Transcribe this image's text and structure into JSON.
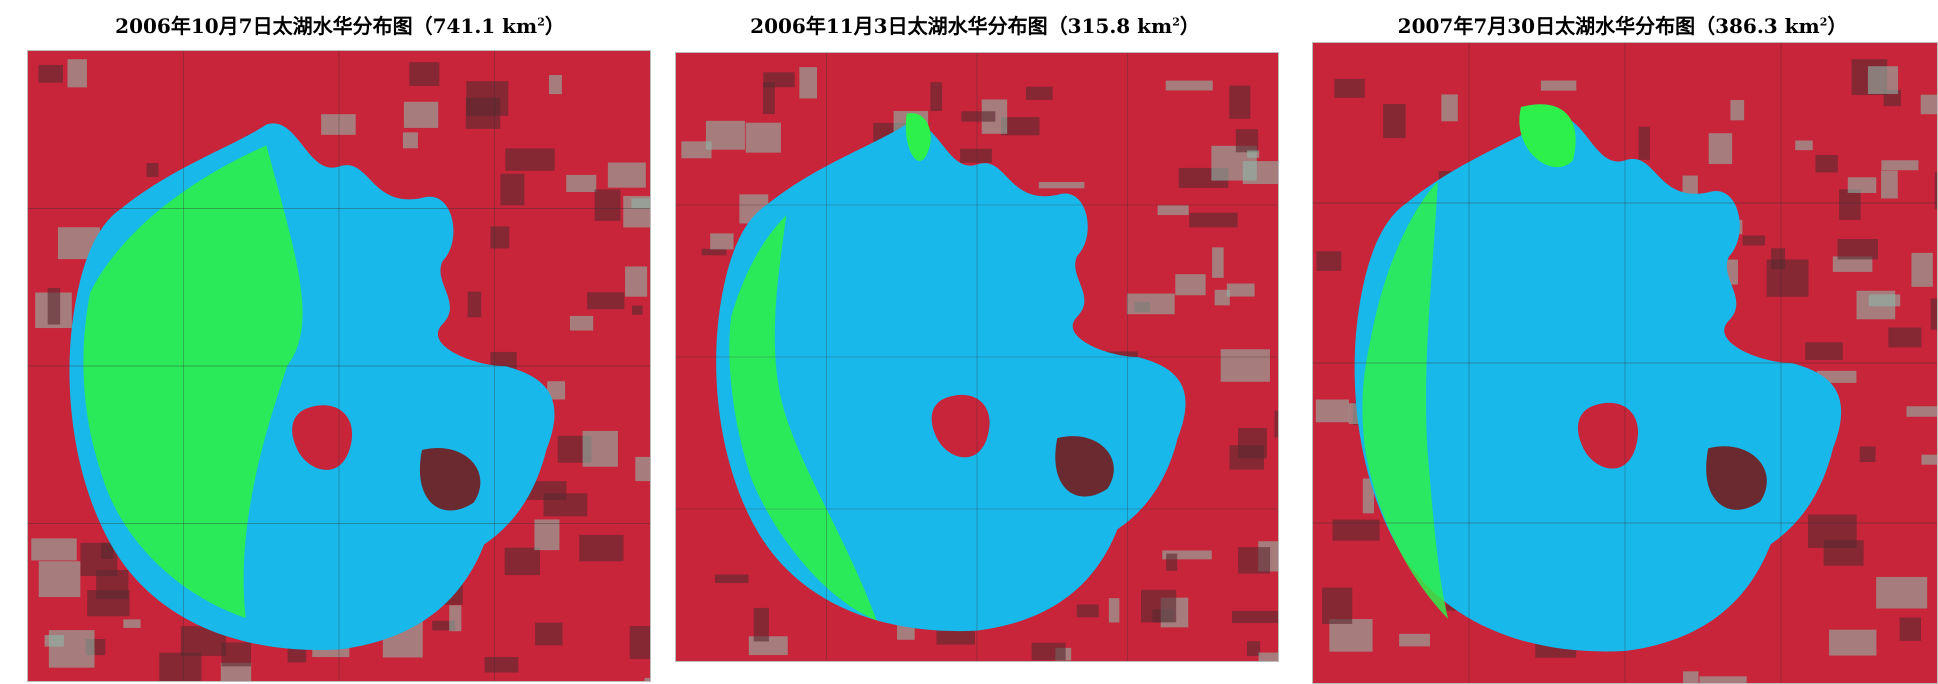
{
  "panels": [
    {
      "title_prefix": "2006年10月7日太湖水华分布图（741.1 km",
      "title_suffix": "）",
      "superscript": "2",
      "bloom_area_km2": 741.1
    },
    {
      "title_prefix": "2006年11月3日太湖水华分布图（315.8 km",
      "title_suffix": "）",
      "superscript": "2",
      "bloom_area_km2": 315.8
    },
    {
      "title_prefix": "2007年7月30日太湖水华分布图（386.3 km",
      "title_suffix": "）",
      "superscript": "2",
      "bloom_area_km2": 386.3
    }
  ],
  "colors": {
    "water": "#18b8ea",
    "bloom": "#2ef04a",
    "land_vegetation": "#c8243a",
    "land_urban": "#8fb8a8"
  }
}
